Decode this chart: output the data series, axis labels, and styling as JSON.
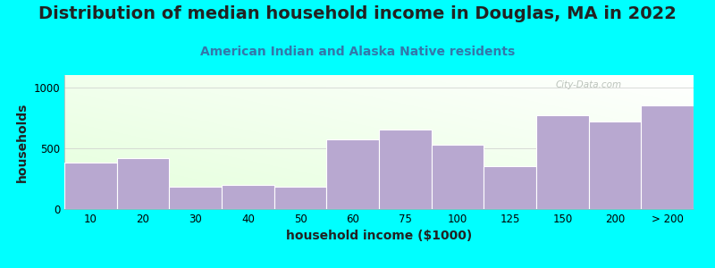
{
  "title": "Distribution of median household income in Douglas, MA in 2022",
  "subtitle": "American Indian and Alaska Native residents",
  "xlabel": "household income ($1000)",
  "ylabel": "households",
  "background_color": "#00FFFF",
  "bar_color": "#b8a8d0",
  "bar_edge_color": "#ffffff",
  "categories": [
    "10",
    "20",
    "30",
    "40",
    "50",
    "60",
    "75",
    "100",
    "125",
    "150",
    "200",
    "> 200"
  ],
  "values": [
    385,
    415,
    185,
    195,
    185,
    570,
    650,
    530,
    355,
    770,
    720,
    850
  ],
  "ylim": [
    0,
    1100
  ],
  "yticks": [
    0,
    500,
    1000
  ],
  "title_fontsize": 14,
  "subtitle_fontsize": 10,
  "axis_label_fontsize": 10,
  "tick_fontsize": 8.5,
  "watermark_text": "City-Data.com",
  "watermark_color": "#b0b8b0",
  "plot_bg_left_bottom": "#c8dfc0",
  "plot_bg_right_top": "#f8f8f8"
}
